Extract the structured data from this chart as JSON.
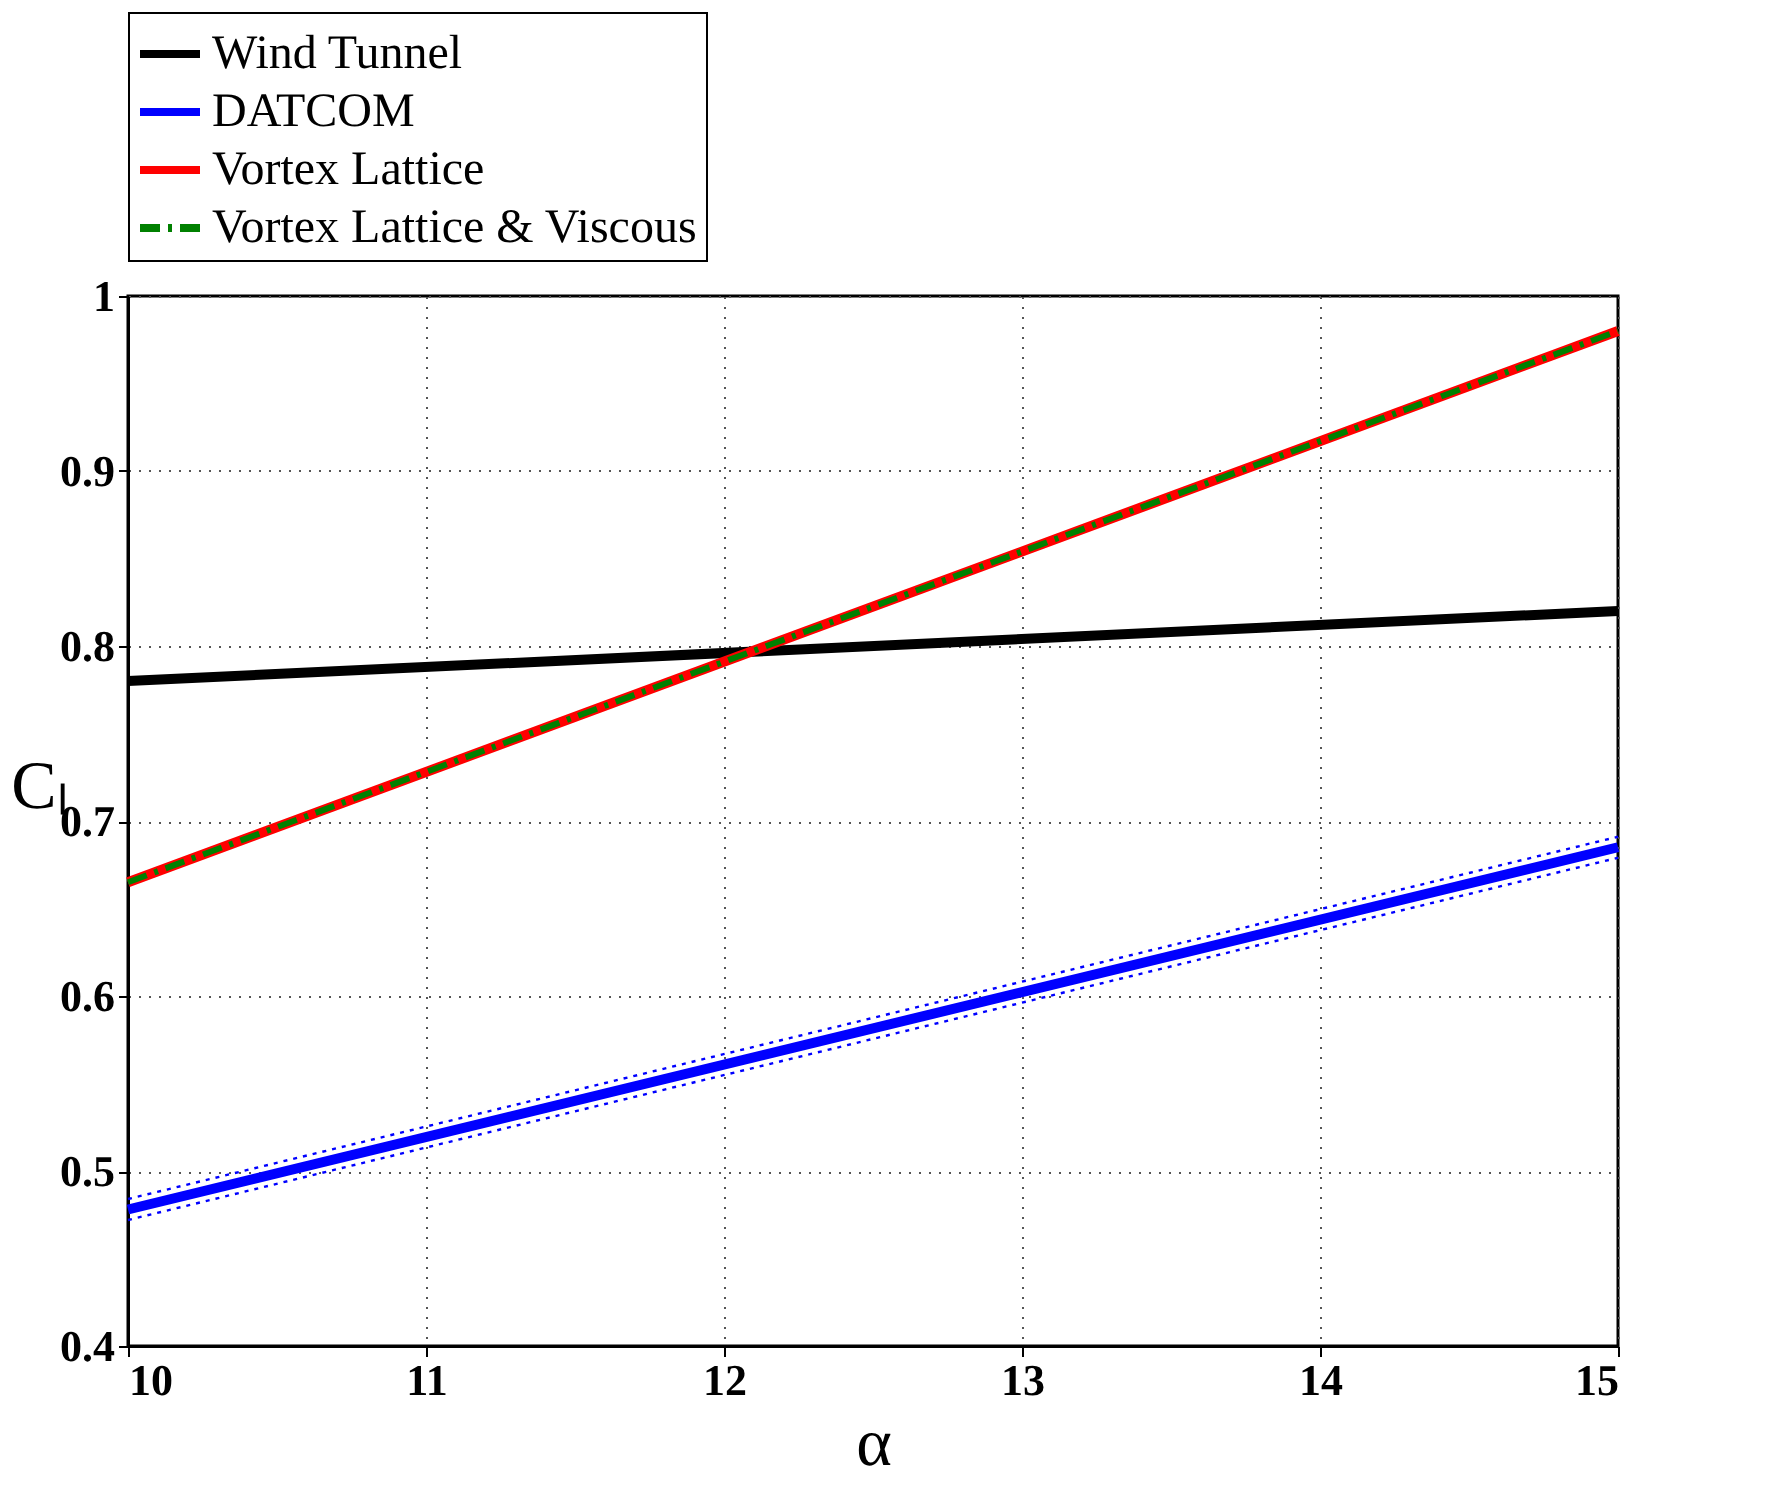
{
  "chart_data": {
    "type": "line",
    "xlabel": "α",
    "ylabel": "Cₗ",
    "x": [
      10,
      15
    ],
    "series": [
      {
        "name": "Wind Tunnel",
        "color": "#000000",
        "values": [
          0.78,
          0.82
        ]
      },
      {
        "name": "DATCOM",
        "color": "#0000ff",
        "values": [
          0.478,
          0.685
        ]
      },
      {
        "name": "Vortex Lattice",
        "color": "#ff0000",
        "values": [
          0.665,
          0.98
        ]
      },
      {
        "name": "Vortex Lattice & Viscous",
        "color": "#008000",
        "values": [
          0.665,
          0.98
        ],
        "line_style": "dashed"
      },
      {
        "color": "#0000ff",
        "values": [
          0.484,
          0.691
        ],
        "line_style": "dotted"
      },
      {
        "color": "#0000ff",
        "values": [
          0.472,
          0.679
        ],
        "line_style": "dotted"
      }
    ],
    "xlim": [
      10,
      15
    ],
    "xticks": [
      10,
      11,
      12,
      13,
      14,
      15
    ],
    "ylim": [
      0.4,
      1
    ],
    "yticks": [
      0.4,
      0.5,
      0.6,
      0.7,
      0.8,
      0.9,
      1
    ],
    "grid": true,
    "legend": "top",
    "marker": "none"
  }
}
